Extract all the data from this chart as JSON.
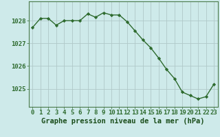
{
  "x": [
    0,
    1,
    2,
    3,
    4,
    5,
    6,
    7,
    8,
    9,
    10,
    11,
    12,
    13,
    14,
    15,
    16,
    17,
    18,
    19,
    20,
    21,
    22,
    23
  ],
  "y": [
    1027.7,
    1028.1,
    1028.1,
    1027.8,
    1028.0,
    1028.0,
    1028.0,
    1028.3,
    1028.15,
    1028.35,
    1028.25,
    1028.25,
    1027.95,
    1027.55,
    1027.15,
    1026.8,
    1026.35,
    1025.85,
    1025.45,
    1024.85,
    1024.7,
    1024.55,
    1024.65,
    1025.2
  ],
  "line_color": "#2d6a2d",
  "marker": "D",
  "marker_size": 2.2,
  "bg_color": "#ceeaea",
  "grid_color": "#b0c8c8",
  "title": "Graphe pression niveau de la mer (hPa)",
  "title_color": "#1a4d1a",
  "title_fontsize": 7.5,
  "ylabel_ticks": [
    1025,
    1026,
    1027,
    1028
  ],
  "xlim": [
    -0.5,
    23.5
  ],
  "ylim": [
    1024.2,
    1028.85
  ],
  "tick_color": "#2d6a2d",
  "tick_fontsize": 6.5,
  "spine_color": "#4a7a4a",
  "linewidth": 1.0
}
